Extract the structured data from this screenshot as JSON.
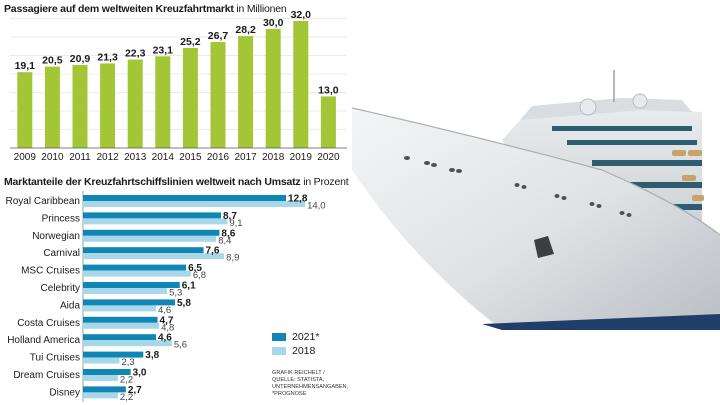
{
  "colors": {
    "green": "#a3c637",
    "green_dark": "#8fb02c",
    "blue_dark": "#0f86b3",
    "blue_light": "#a9d7ea",
    "text": "#1a1a1a"
  },
  "chart_data": [
    {
      "type": "bar",
      "title": "Passagiere auf dem weltweiten Kreuzfahrtmarkt",
      "subtitle": "in Millionen",
      "categories": [
        "2009",
        "2010",
        "2011",
        "2012",
        "2013",
        "2014",
        "2015",
        "2016",
        "2017",
        "2018",
        "2019",
        "2020"
      ],
      "values": [
        19.1,
        20.5,
        20.9,
        21.3,
        22.3,
        23.1,
        25.2,
        26.7,
        28.2,
        30.0,
        32.0,
        13.0
      ],
      "value_labels": [
        "19,1",
        "20,5",
        "20,9",
        "21,3",
        "22,3",
        "23,1",
        "25,2",
        "26,7",
        "28,2",
        "30,0",
        "32,0",
        "13,0"
      ],
      "ylim": [
        0,
        32.5
      ],
      "grid": true
    },
    {
      "type": "bar",
      "orientation": "horizontal",
      "title": "Marktanteile der Kreuzfahrtschiffslinien weltweit nach Umsatz",
      "subtitle": "in Prozent",
      "categories": [
        "Royal Caribbean",
        "Princess",
        "Norwegian",
        "Carnival",
        "MSC Cruises",
        "Celebrity",
        "Aida",
        "Costa Cruises",
        "Holland America",
        "Tui Cruises",
        "Dream Cruises",
        "Disney"
      ],
      "series": [
        {
          "name": "2021*",
          "values": [
            12.8,
            8.7,
            8.6,
            7.6,
            6.5,
            6.1,
            5.8,
            4.7,
            4.6,
            3.8,
            3.0,
            2.7
          ],
          "labels": [
            "12,8",
            "8,7",
            "8,6",
            "7,6",
            "6,5",
            "6,1",
            "5,8",
            "4,7",
            "4,6",
            "3,8",
            "3,0",
            "2,7"
          ]
        },
        {
          "name": "2018",
          "values": [
            14.0,
            9.1,
            8.4,
            8.9,
            6.8,
            5.3,
            4.6,
            4.8,
            5.6,
            2.3,
            2.2,
            2.2
          ],
          "labels": [
            "14,0",
            "9,1",
            "8,4",
            "8,9",
            "6,8",
            "5,3",
            "4,6",
            "4,8",
            "5,6",
            "2,3",
            "2,2",
            "2,2"
          ]
        }
      ],
      "xlim": [
        0,
        14.5
      ],
      "legend_position": "bottom-right"
    }
  ],
  "credit_lines": [
    "GRAFIK REICHELT /",
    "QUELLE: STATISTA,",
    "UNTERNEHMENSANGABEN,",
    "*PROGNOSE"
  ]
}
